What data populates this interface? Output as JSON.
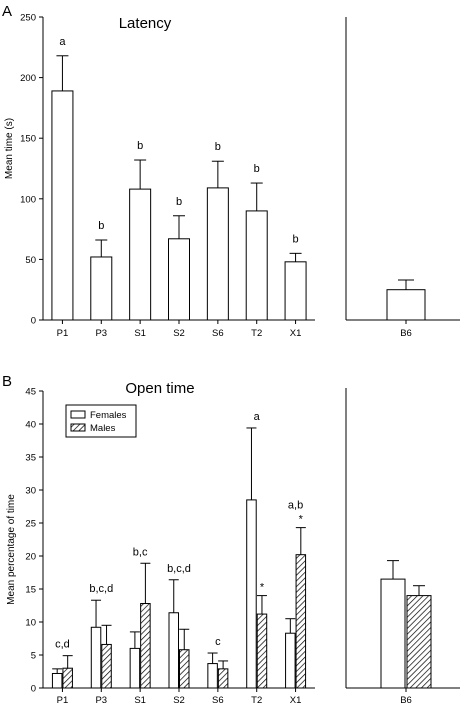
{
  "colors": {
    "ink": "#000000",
    "female_fill": "#ffffff",
    "male_fill": "hatched"
  },
  "chart_data": [
    {
      "panel": "A",
      "type": "bar",
      "title": "Latency",
      "ylabel": "Mean time (s)",
      "xlabel": "",
      "ylim": [
        0,
        250
      ],
      "yticks": [
        0,
        50,
        100,
        150,
        200,
        250
      ],
      "grid": false,
      "categories": [
        "P1",
        "P3",
        "S1",
        "S2",
        "S6",
        "T2",
        "X1"
      ],
      "values": [
        189,
        52,
        108,
        67,
        109,
        90,
        48
      ],
      "errors": [
        29,
        14,
        24,
        19,
        22,
        23,
        7
      ],
      "annotations": [
        "a",
        "b",
        "b",
        "b",
        "b",
        "b",
        "b"
      ],
      "reference": {
        "category": "B6",
        "value": 25,
        "error": 8
      }
    },
    {
      "panel": "B",
      "type": "bar",
      "title": "Open time",
      "ylabel": "Mean percentage of time",
      "xlabel": "",
      "ylim": [
        0,
        45
      ],
      "yticks": [
        0,
        5,
        10,
        15,
        20,
        25,
        30,
        35,
        40,
        45
      ],
      "grid": false,
      "legend_position": "top-left",
      "categories": [
        "P1",
        "P3",
        "S1",
        "S2",
        "S6",
        "T2",
        "X1"
      ],
      "series": [
        {
          "name": "Females",
          "values": [
            2.2,
            9.2,
            6.0,
            11.4,
            3.7,
            28.5,
            8.3
          ],
          "errors": [
            0.7,
            4.1,
            2.5,
            5.0,
            1.6,
            10.9,
            2.2
          ]
        },
        {
          "name": "Males",
          "values": [
            3.0,
            6.6,
            12.8,
            5.8,
            2.9,
            11.2,
            20.2
          ],
          "errors": [
            1.9,
            2.9,
            6.1,
            3.1,
            1.2,
            2.8,
            4.1
          ]
        }
      ],
      "annotations": [
        "c,d",
        "b,c,d",
        "b,c",
        "b,c,d",
        "c",
        "a",
        "a,b"
      ],
      "male_markers": [
        "",
        "",
        "",
        "",
        "",
        "*",
        "*"
      ],
      "reference": {
        "category": "B6",
        "female": 16.5,
        "female_error": 2.8,
        "male": 14.0,
        "male_error": 1.5
      }
    }
  ]
}
